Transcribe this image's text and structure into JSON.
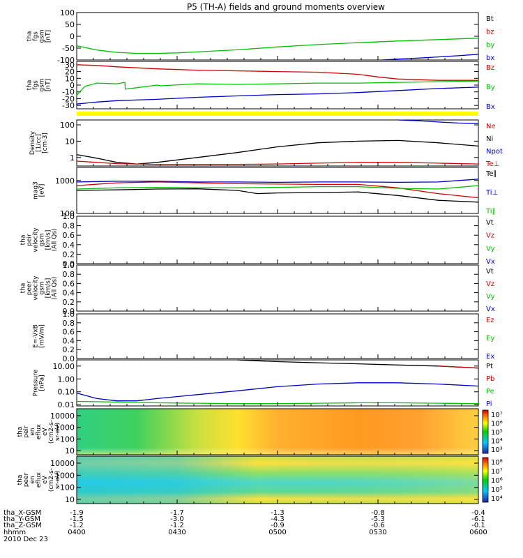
{
  "title": "P5 (TH-A) fields and ground moments overview",
  "colors": {
    "black": "#000000",
    "red": "#d00000",
    "green": "#00c000",
    "blue": "#0000c8",
    "yellow": "#ffff00"
  },
  "chart_data": [
    {
      "type": "line",
      "panel": "fgs-nT",
      "ylabel": [
        "tha",
        "fgs",
        "gsm",
        "[nT]"
      ],
      "ylim": [
        -100,
        100
      ],
      "yticks": [
        "100",
        "50",
        "0",
        "-50",
        "-100"
      ],
      "legend": [
        {
          "text": "Bt",
          "color": "black"
        },
        {
          "text": "bz",
          "color": "red"
        },
        {
          "text": "by",
          "color": "green"
        },
        {
          "text": "bx",
          "color": "blue"
        }
      ],
      "series": [
        {
          "color": "green",
          "t": [
            0,
            0.05,
            0.1,
            0.15,
            0.2,
            0.25,
            0.3,
            0.4,
            0.5,
            0.6,
            0.7,
            0.8,
            0.9,
            1.0
          ],
          "y": [
            -40,
            -58,
            -68,
            -72,
            -72,
            -70,
            -66,
            -57,
            -45,
            -35,
            -27,
            -20,
            -14,
            -8
          ]
        },
        {
          "color": "blue",
          "t": [
            0.76,
            0.8,
            0.85,
            0.9,
            0.95,
            1.0
          ],
          "y": [
            -100,
            -96,
            -92,
            -87,
            -82,
            -76
          ]
        }
      ]
    },
    {
      "type": "line",
      "panel": "fgs-nT-2",
      "ylabel": [
        "tha",
        "fgs",
        "gsm",
        "[nT]"
      ],
      "ylim": [
        -35,
        35
      ],
      "yticks": [
        "30",
        "20",
        "10",
        "0",
        "-10",
        "-20",
        "-30"
      ],
      "legend": [
        {
          "text": "Bz",
          "color": "red"
        },
        {
          "text": "By",
          "color": "green"
        },
        {
          "text": "Bx",
          "color": "blue"
        }
      ],
      "series": [
        {
          "color": "red",
          "t": [
            0,
            0.05,
            0.1,
            0.2,
            0.3,
            0.4,
            0.5,
            0.6,
            0.7,
            0.75,
            0.8,
            0.85,
            0.9,
            1.0
          ],
          "y": [
            30,
            29,
            27,
            24,
            22,
            21,
            20,
            19,
            16,
            12,
            9,
            8,
            7,
            7
          ]
        },
        {
          "color": "green",
          "t": [
            0,
            0.02,
            0.05,
            0.1,
            0.12,
            0.121,
            0.2,
            0.21,
            0.3,
            0.4,
            0.5,
            0.6,
            0.7,
            0.8,
            0.9,
            1.0
          ],
          "y": [
            -15,
            -2,
            3,
            2,
            4,
            -6,
            0,
            -1,
            2,
            1,
            2,
            3,
            3,
            4,
            5,
            6
          ]
        },
        {
          "color": "blue",
          "t": [
            0,
            0.05,
            0.1,
            0.2,
            0.3,
            0.4,
            0.5,
            0.6,
            0.7,
            0.8,
            0.9,
            1.0
          ],
          "y": [
            -28,
            -25,
            -23,
            -21,
            -18,
            -16,
            -14,
            -13,
            -11,
            -8,
            -5,
            -3
          ]
        }
      ]
    },
    {
      "type": "line",
      "panel": "density",
      "ylabel": [
        "Density",
        "[1/cc]",
        "[cm-3]"
      ],
      "yscale": "log",
      "ylim": [
        0.3,
        200
      ],
      "yticks": [
        "100",
        "10",
        "1"
      ],
      "legend": [
        {
          "text": "Ne",
          "color": "red"
        },
        {
          "text": "Ni",
          "color": "black"
        },
        {
          "text": "Npot",
          "color": "blue"
        },
        {
          "text": "Te⊥",
          "color": "red"
        }
      ],
      "series": [
        {
          "color": "black",
          "t": [
            0,
            0.05,
            0.1,
            0.15,
            0.2,
            0.3,
            0.4,
            0.5,
            0.6,
            0.7,
            0.8,
            0.9,
            1.0
          ],
          "y": [
            1.5,
            0.9,
            0.5,
            0.4,
            0.5,
            1.0,
            2.0,
            4.5,
            8,
            10,
            11,
            8,
            5
          ]
        },
        {
          "color": "red",
          "t": [
            0,
            0.1,
            0.2,
            0.3,
            0.4,
            0.5,
            0.6,
            0.7,
            0.8,
            0.9,
            1.0
          ],
          "y": [
            0.6,
            0.42,
            0.38,
            0.38,
            0.38,
            0.4,
            0.45,
            0.5,
            0.5,
            0.45,
            0.4
          ]
        },
        {
          "color": "blue",
          "t": [
            0.8,
            0.85,
            0.9,
            0.95,
            1.0
          ],
          "y": [
            200,
            180,
            150,
            130,
            120
          ]
        }
      ]
    },
    {
      "type": "line",
      "panel": "temperature",
      "ylabel": [
        "mag3",
        "[eV]"
      ],
      "yscale": "log",
      "ylim": [
        100,
        2500
      ],
      "yticks": [
        "1000",
        "100"
      ],
      "legend": [
        {
          "text": "Te∥",
          "color": "black"
        },
        {
          "text": "Ti⊥",
          "color": "blue"
        },
        {
          "text": "Ti∥",
          "color": "green"
        }
      ],
      "series": [
        {
          "color": "blue",
          "t": [
            0,
            0.1,
            0.2,
            0.3,
            0.4,
            0.5,
            0.6,
            0.7,
            0.8,
            0.9,
            1.0
          ],
          "y": [
            900,
            950,
            950,
            900,
            900,
            880,
            900,
            900,
            880,
            900,
            1100
          ]
        },
        {
          "color": "red",
          "t": [
            0,
            0.1,
            0.2,
            0.3,
            0.4,
            0.5,
            0.6,
            0.7,
            0.8,
            0.9,
            1.0
          ],
          "y": [
            700,
            850,
            900,
            850,
            800,
            780,
            760,
            760,
            600,
            400,
            300
          ]
        },
        {
          "color": "green",
          "t": [
            0,
            0.1,
            0.2,
            0.3,
            0.4,
            0.5,
            0.6,
            0.7,
            0.8,
            0.9,
            1.0
          ],
          "y": [
            550,
            600,
            620,
            600,
            600,
            620,
            650,
            650,
            580,
            550,
            700
          ]
        },
        {
          "color": "black",
          "t": [
            0,
            0.1,
            0.2,
            0.3,
            0.4,
            0.45,
            0.5,
            0.6,
            0.7,
            0.8,
            0.9,
            1.0
          ],
          "y": [
            500,
            520,
            550,
            560,
            500,
            400,
            420,
            430,
            450,
            350,
            250,
            220
          ]
        }
      ]
    },
    {
      "type": "line",
      "panel": "velocity-peir",
      "ylabel": [
        "tha",
        "peir",
        "velocity",
        "gsm",
        "[km/s]",
        "(All Qs)"
      ],
      "ylim": [
        0,
        1
      ],
      "yticks": [
        "1.0",
        "0.8",
        "0.6",
        "0.4",
        "0.2",
        "0.0"
      ],
      "legend": [
        {
          "text": "Vt",
          "color": "black"
        },
        {
          "text": "Vz",
          "color": "red"
        },
        {
          "text": "Vy",
          "color": "green"
        },
        {
          "text": "Vx",
          "color": "blue"
        }
      ],
      "series": []
    },
    {
      "type": "line",
      "panel": "velocity-peer",
      "ylabel": [
        "tha",
        "peer",
        "velocity",
        "gsm",
        "[km/s]",
        "(All Qs)"
      ],
      "ylim": [
        0,
        1
      ],
      "yticks": [
        "1.0",
        "0.8",
        "0.6",
        "0.4",
        "0.2",
        "0.0"
      ],
      "legend": [
        {
          "text": "Vt",
          "color": "black"
        },
        {
          "text": "Vz",
          "color": "red"
        },
        {
          "text": "Vy",
          "color": "green"
        },
        {
          "text": "Vx",
          "color": "blue"
        }
      ],
      "series": []
    },
    {
      "type": "line",
      "panel": "efield",
      "ylabel": [
        "E=-VxB",
        "[mV/m]"
      ],
      "ylim": [
        0,
        1
      ],
      "yticks": [
        "1.0",
        "0.8",
        "0.6",
        "0.4",
        "0.2",
        "0.0"
      ],
      "legend": [
        {
          "text": "Ez",
          "color": "red"
        },
        {
          "text": "Ey",
          "color": "green"
        },
        {
          "text": "Ex",
          "color": "blue"
        }
      ],
      "series": []
    },
    {
      "type": "line",
      "panel": "pressure",
      "ylabel": [
        "Pressure",
        "[nPa]"
      ],
      "yscale": "log",
      "ylim": [
        0.008,
        30
      ],
      "yticks": [
        "10.00",
        "1.00",
        "0.10",
        "0.01"
      ],
      "legend": [
        {
          "text": "Pt",
          "color": "black"
        },
        {
          "text": "Pb",
          "color": "red"
        },
        {
          "text": "Pe",
          "color": "green"
        },
        {
          "text": "Pi",
          "color": "blue"
        }
      ],
      "series": [
        {
          "color": "black",
          "t": [
            0.4,
            0.5,
            0.6,
            0.7,
            0.8,
            0.9,
            1.0
          ],
          "y": [
            30,
            22,
            18,
            15,
            12,
            10,
            7
          ]
        },
        {
          "color": "red",
          "t": [
            0.9,
            0.95,
            1.0
          ],
          "y": [
            10,
            8.5,
            7
          ]
        },
        {
          "color": "blue",
          "t": [
            0,
            0.05,
            0.1,
            0.15,
            0.2,
            0.3,
            0.4,
            0.5,
            0.6,
            0.7,
            0.8,
            0.9,
            1.0
          ],
          "y": [
            0.08,
            0.03,
            0.02,
            0.02,
            0.03,
            0.06,
            0.12,
            0.25,
            0.4,
            0.5,
            0.5,
            0.4,
            0.28
          ]
        },
        {
          "color": "green",
          "t": [
            0,
            0.1,
            0.2,
            0.3,
            0.4,
            0.5,
            0.6,
            0.7,
            0.8,
            0.9,
            1.0
          ],
          "y": [
            0.018,
            0.016,
            0.014,
            0.013,
            0.012,
            0.012,
            0.013,
            0.014,
            0.014,
            0.013,
            0.012
          ]
        }
      ]
    },
    {
      "type": "heatmap",
      "panel": "peir-spectrogram",
      "ylabel": [
        "tha",
        "peir",
        "en",
        "eflux",
        "eV",
        "(cm2-s-",
        "sr-eV)"
      ],
      "yscale": "log",
      "yticks": [
        "10000",
        "1000",
        "100",
        "10"
      ],
      "colorbar_ticks": [
        "10⁷",
        "10⁶",
        "10⁵",
        "10⁴",
        "10³"
      ]
    },
    {
      "type": "heatmap",
      "panel": "peer-spectrogram",
      "ylabel": [
        "tha",
        "peer",
        "en",
        "eflux",
        "eV",
        "(cm2-s-",
        "sr-eV)"
      ],
      "yscale": "log",
      "yticks": [
        "10000",
        "1000",
        "100",
        "10"
      ],
      "colorbar_ticks": [
        "10⁸",
        "10⁷",
        "10⁶",
        "10⁵",
        "10⁴"
      ]
    }
  ],
  "xaxis": {
    "row_labels": [
      "tha_X-GSM",
      "tha_Y-GSM",
      "tha_Z-GSM",
      "hhmm",
      "2010 Dec 23"
    ],
    "ticks": [
      {
        "x": "-1.9",
        "y": "-1.5",
        "z": "-1.2",
        "time": "0400"
      },
      {
        "x": "-1.7",
        "y": "-3.0",
        "z": "-1.2",
        "time": "0430"
      },
      {
        "x": "-1.3",
        "y": "-4.3",
        "z": "-0.9",
        "time": "0500"
      },
      {
        "x": "-0.8",
        "y": "-5.3",
        "z": "-0.6",
        "time": "0530"
      },
      {
        "x": "-0.4",
        "y": "-6.1",
        "z": "-0.1",
        "time": "0600"
      }
    ]
  }
}
